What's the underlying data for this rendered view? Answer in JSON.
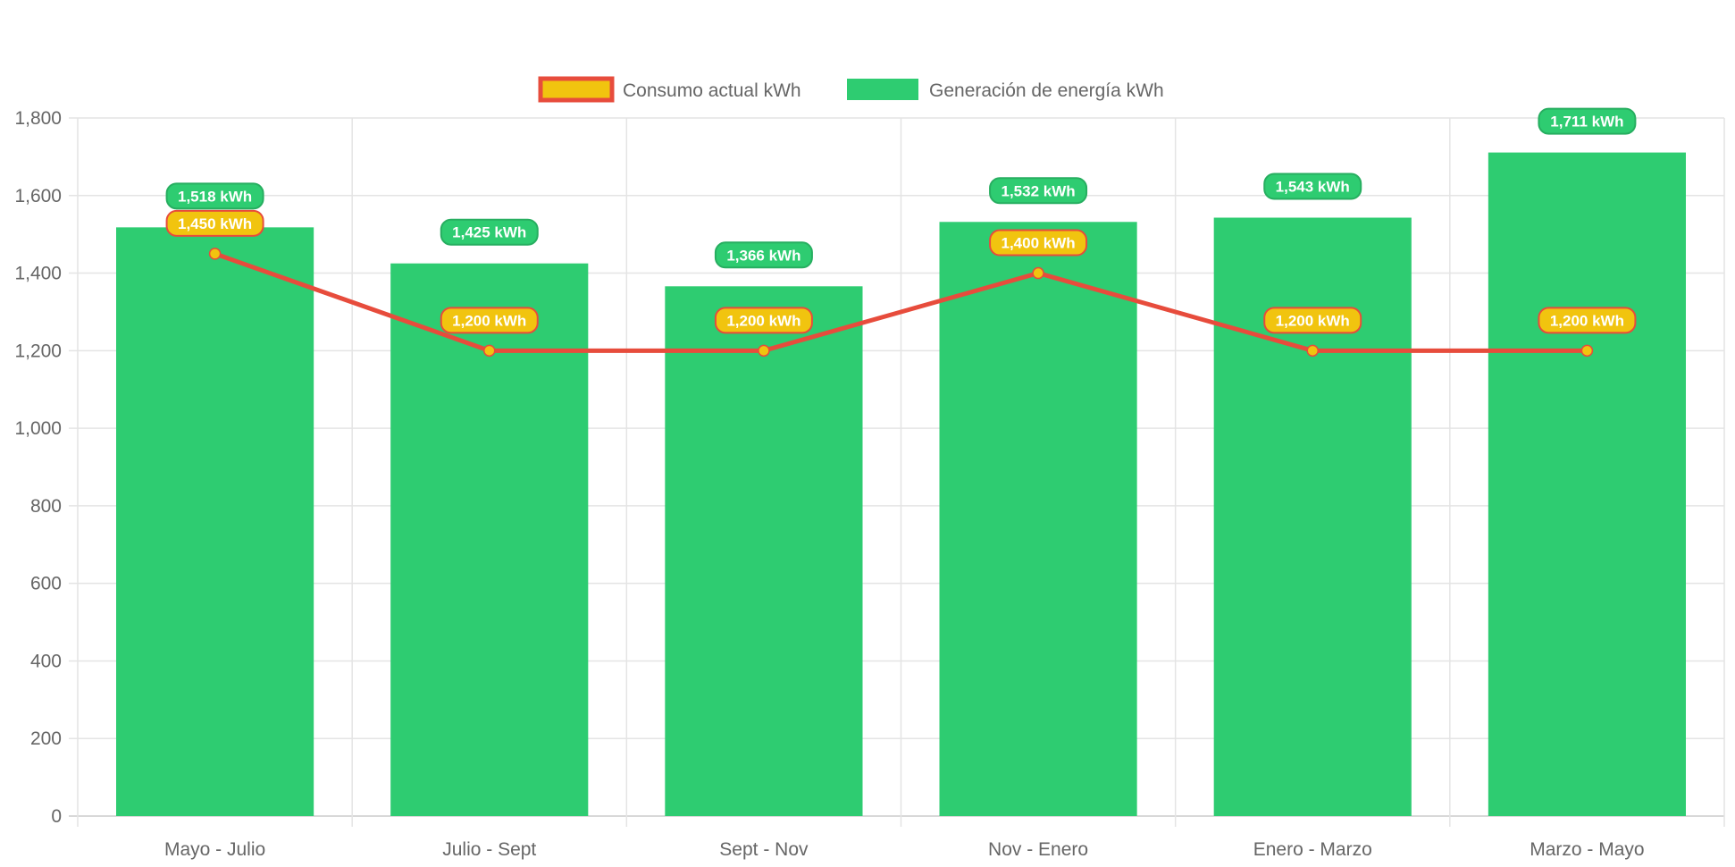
{
  "chart_data": {
    "type": "bar",
    "categories": [
      "Mayo - Julio",
      "Julio - Sept",
      "Sept - Nov",
      "Nov - Enero",
      "Enero - Marzo",
      "Marzo - Mayo"
    ],
    "series": [
      {
        "name": "Consumo actual kWh",
        "type": "line",
        "values": [
          1450,
          1200,
          1200,
          1400,
          1200,
          1200
        ],
        "color": "#e74c3c",
        "point_color": "#f1c40f"
      },
      {
        "name": "Generación de energía kWh",
        "type": "bar",
        "values": [
          1518,
          1425,
          1366,
          1532,
          1543,
          1711
        ],
        "color": "#2ecc71"
      }
    ],
    "data_label_suffix": " kWh",
    "ylim": [
      0,
      1800
    ],
    "yticks": [
      0,
      200,
      400,
      600,
      800,
      1000,
      1200,
      1400,
      1600,
      1800
    ],
    "grid": true,
    "legend": "top-center",
    "title": "",
    "xlabel": "",
    "ylabel": ""
  }
}
